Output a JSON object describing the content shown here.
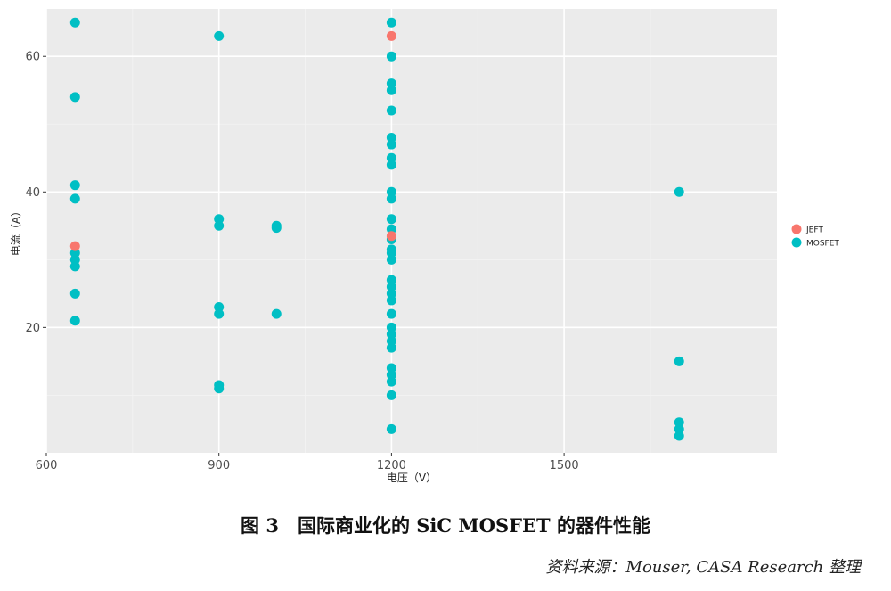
{
  "chart_data": {
    "type": "scatter",
    "title": "",
    "xlabel": "电压（V）",
    "ylabel": "电流（A）",
    "xlim": [
      600,
      1870
    ],
    "ylim": [
      1.5,
      67
    ],
    "x_ticks": [
      600,
      900,
      1200,
      1500
    ],
    "x_tick_labels": [
      "600",
      "900",
      "1200",
      "1500"
    ],
    "x_minor_ticks": [
      750,
      1050,
      1350,
      1650
    ],
    "y_ticks": [
      20,
      40,
      60
    ],
    "y_tick_labels": [
      "20",
      "40",
      "60"
    ],
    "y_minor_ticks": [
      10,
      30,
      50
    ],
    "grid": true,
    "legend_position": "right",
    "series": [
      {
        "name": "JEFT",
        "color": "#F8766D",
        "points": [
          [
            650,
            32
          ],
          [
            1200,
            63
          ],
          [
            1200,
            33.5
          ]
        ]
      },
      {
        "name": "MOSFET",
        "color": "#00BFC4",
        "points": [
          [
            650,
            65
          ],
          [
            650,
            54
          ],
          [
            650,
            41
          ],
          [
            650,
            39
          ],
          [
            650,
            31
          ],
          [
            650,
            30
          ],
          [
            650,
            29
          ],
          [
            650,
            25
          ],
          [
            650,
            21
          ],
          [
            900,
            63
          ],
          [
            900,
            36
          ],
          [
            900,
            35
          ],
          [
            900,
            23
          ],
          [
            900,
            22
          ],
          [
            900,
            11.5
          ],
          [
            900,
            11
          ],
          [
            1000,
            35
          ],
          [
            1000,
            34.7
          ],
          [
            1000,
            22
          ],
          [
            1200,
            65
          ],
          [
            1200,
            60
          ],
          [
            1200,
            56
          ],
          [
            1200,
            55
          ],
          [
            1200,
            52
          ],
          [
            1200,
            48
          ],
          [
            1200,
            47
          ],
          [
            1200,
            45
          ],
          [
            1200,
            44
          ],
          [
            1200,
            40
          ],
          [
            1200,
            39
          ],
          [
            1200,
            36
          ],
          [
            1200,
            34.5
          ],
          [
            1200,
            33
          ],
          [
            1200,
            31.5
          ],
          [
            1200,
            31
          ],
          [
            1200,
            30
          ],
          [
            1200,
            27
          ],
          [
            1200,
            26
          ],
          [
            1200,
            25
          ],
          [
            1200,
            24
          ],
          [
            1200,
            22
          ],
          [
            1200,
            20
          ],
          [
            1200,
            19
          ],
          [
            1200,
            18
          ],
          [
            1200,
            17
          ],
          [
            1200,
            14
          ],
          [
            1200,
            13
          ],
          [
            1200,
            12
          ],
          [
            1200,
            10
          ],
          [
            1200,
            5
          ],
          [
            1700,
            40
          ],
          [
            1700,
            15
          ],
          [
            1700,
            6
          ],
          [
            1700,
            5
          ],
          [
            1700,
            4
          ]
        ]
      }
    ]
  },
  "caption": "图 3　国际商业化的 SiC MOSFET 的器件性能",
  "source": "资料来源：Mouser, CASA Research 整理"
}
